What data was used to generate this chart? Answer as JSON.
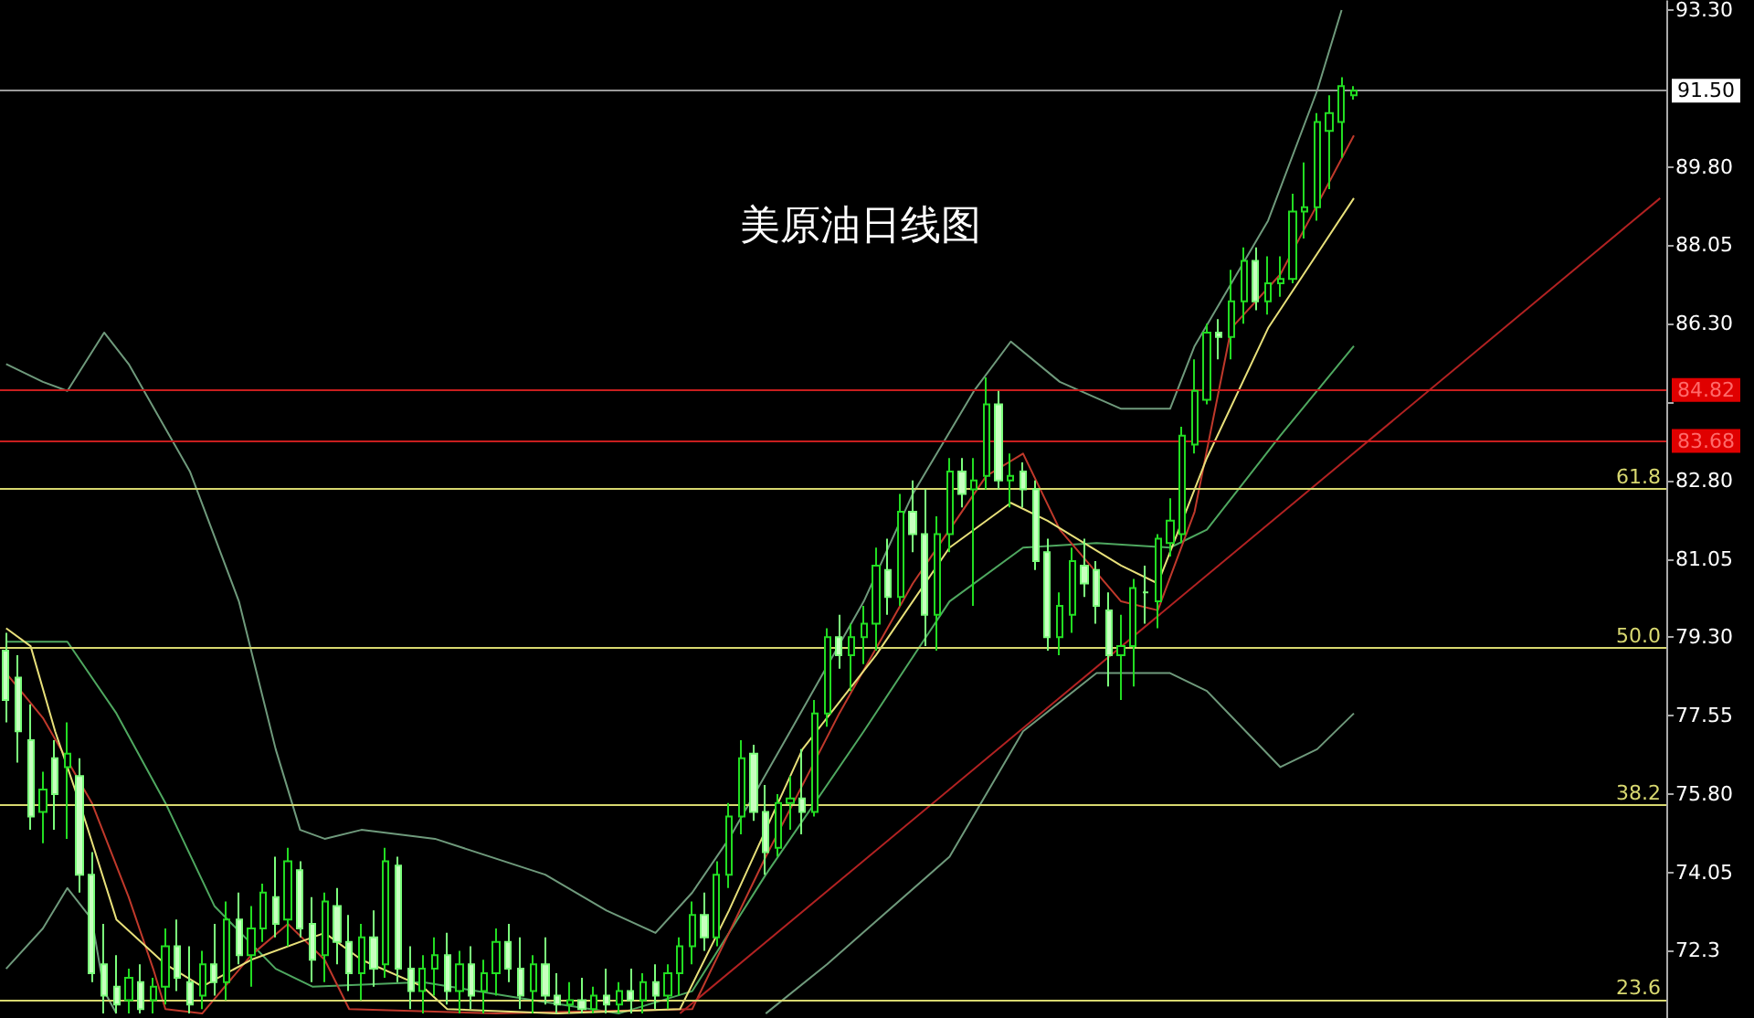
{
  "chart_data": {
    "type": "candlestick",
    "title": "美原油日线图",
    "tick_labels": "y",
    "categories": [
      null,
      null,
      null,
      null,
      null,
      null,
      null,
      null,
      null,
      null,
      null,
      null,
      null,
      null,
      null,
      null,
      null,
      null,
      null,
      null,
      null,
      null,
      null,
      null,
      null,
      null,
      null,
      null,
      null,
      null,
      null,
      null,
      null,
      null,
      null,
      null,
      null,
      null,
      null,
      null,
      null,
      null,
      null,
      null,
      null,
      null,
      null,
      null,
      null,
      null,
      null,
      null,
      null,
      null,
      null,
      null,
      null,
      null,
      null,
      null,
      null,
      null,
      null,
      null,
      null,
      null,
      null,
      null,
      null,
      null,
      null,
      null,
      null,
      null,
      null,
      null,
      null,
      null,
      null,
      null,
      null,
      null,
      null,
      null,
      null,
      null,
      null,
      null,
      null,
      null,
      null,
      null,
      null,
      null,
      null,
      null,
      null,
      null,
      null,
      null,
      null,
      null,
      null,
      null,
      null,
      null,
      null,
      null,
      null,
      null,
      null,
      null,
      null,
      null,
      null,
      null,
      null,
      null,
      null,
      null,
      null,
      null,
      null,
      null,
      null,
      null,
      null,
      null,
      null,
      null,
      null,
      null,
      null,
      null,
      null,
      null
    ],
    "ohlc": [
      [
        79.0,
        79.4,
        77.4,
        77.9
      ],
      [
        78.4,
        78.9,
        76.5,
        77.2
      ],
      [
        77.0,
        77.8,
        75.0,
        75.3
      ],
      [
        75.4,
        76.3,
        74.7,
        75.9
      ],
      [
        76.6,
        77.0,
        75.0,
        75.8
      ],
      [
        76.4,
        77.4,
        74.8,
        76.7
      ],
      [
        76.2,
        76.6,
        73.6,
        74.0
      ],
      [
        74.0,
        74.5,
        71.6,
        71.8
      ],
      [
        72.0,
        72.9,
        70.9,
        71.3
      ],
      [
        71.5,
        72.2,
        70.9,
        71.1
      ],
      [
        71.2,
        71.9,
        70.9,
        71.7
      ],
      [
        71.6,
        72.0,
        70.9,
        71.0
      ],
      [
        71.2,
        71.7,
        70.9,
        71.5
      ],
      [
        71.5,
        72.8,
        71.1,
        72.4
      ],
      [
        72.4,
        73.0,
        71.4,
        71.7
      ],
      [
        71.6,
        72.4,
        70.9,
        71.1
      ],
      [
        71.3,
        72.3,
        71.0,
        72.0
      ],
      [
        72.0,
        72.9,
        71.3,
        71.6
      ],
      [
        71.6,
        73.4,
        71.2,
        73.0
      ],
      [
        73.0,
        73.6,
        72.0,
        72.2
      ],
      [
        72.2,
        73.3,
        71.5,
        72.8
      ],
      [
        72.8,
        73.8,
        72.5,
        73.6
      ],
      [
        73.5,
        74.4,
        72.6,
        72.9
      ],
      [
        73.0,
        74.6,
        72.4,
        74.3
      ],
      [
        74.1,
        74.3,
        72.6,
        72.8
      ],
      [
        72.9,
        73.5,
        71.6,
        72.1
      ],
      [
        72.2,
        73.6,
        71.6,
        73.4
      ],
      [
        73.3,
        73.7,
        72.0,
        72.5
      ],
      [
        72.5,
        73.1,
        71.4,
        71.8
      ],
      [
        71.8,
        72.9,
        71.2,
        72.6
      ],
      [
        72.6,
        73.2,
        71.5,
        71.9
      ],
      [
        72.0,
        74.6,
        71.7,
        74.3
      ],
      [
        74.2,
        74.4,
        71.6,
        71.9
      ],
      [
        71.9,
        72.4,
        71.0,
        71.4
      ],
      [
        71.4,
        72.2,
        70.9,
        71.9
      ],
      [
        71.9,
        72.6,
        71.3,
        72.2
      ],
      [
        72.2,
        72.7,
        71.1,
        71.4
      ],
      [
        71.4,
        72.3,
        70.9,
        72.0
      ],
      [
        72.0,
        72.4,
        71.0,
        71.3
      ],
      [
        71.4,
        72.1,
        70.9,
        71.8
      ],
      [
        71.8,
        72.8,
        71.3,
        72.5
      ],
      [
        72.5,
        72.9,
        71.6,
        71.9
      ],
      [
        71.9,
        72.6,
        71.0,
        71.3
      ],
      [
        71.4,
        72.2,
        70.9,
        72.0
      ],
      [
        72.0,
        72.6,
        71.1,
        71.3
      ],
      [
        71.3,
        71.8,
        70.9,
        71.1
      ],
      [
        71.1,
        71.6,
        70.9,
        71.2
      ],
      [
        71.2,
        71.7,
        70.9,
        71.0
      ],
      [
        71.0,
        71.5,
        70.9,
        71.3
      ],
      [
        71.3,
        71.9,
        70.9,
        71.1
      ],
      [
        71.1,
        71.6,
        70.9,
        71.4
      ],
      [
        71.4,
        71.9,
        70.9,
        71.2
      ],
      [
        71.2,
        71.8,
        70.9,
        71.6
      ],
      [
        71.6,
        72.0,
        71.0,
        71.3
      ],
      [
        71.3,
        72.0,
        71.0,
        71.8
      ],
      [
        71.8,
        72.6,
        71.3,
        72.4
      ],
      [
        72.4,
        73.4,
        72.0,
        73.1
      ],
      [
        73.1,
        73.6,
        72.3,
        72.6
      ],
      [
        72.6,
        74.3,
        72.4,
        74.0
      ],
      [
        74.0,
        75.6,
        73.7,
        75.3
      ],
      [
        75.3,
        77.0,
        74.9,
        76.6
      ],
      [
        76.7,
        76.9,
        75.2,
        75.4
      ],
      [
        75.4,
        76.0,
        74.0,
        74.5
      ],
      [
        74.6,
        75.8,
        74.4,
        75.6
      ],
      [
        75.6,
        76.2,
        75.0,
        75.7
      ],
      [
        75.7,
        76.8,
        74.9,
        75.4
      ],
      [
        75.4,
        77.9,
        75.3,
        77.6
      ],
      [
        77.6,
        79.5,
        77.3,
        79.3
      ],
      [
        79.3,
        79.8,
        78.6,
        78.9
      ],
      [
        78.9,
        79.6,
        78.1,
        79.3
      ],
      [
        79.3,
        80.0,
        78.7,
        79.6
      ],
      [
        79.6,
        81.3,
        79.0,
        80.9
      ],
      [
        80.8,
        81.5,
        79.8,
        80.2
      ],
      [
        80.2,
        82.5,
        80.0,
        82.1
      ],
      [
        82.1,
        82.8,
        81.2,
        81.6
      ],
      [
        81.6,
        82.6,
        79.1,
        79.8
      ],
      [
        79.8,
        82.0,
        79.0,
        81.6
      ],
      [
        81.6,
        83.3,
        81.2,
        83.0
      ],
      [
        83.0,
        83.3,
        82.2,
        82.5
      ],
      [
        82.6,
        83.3,
        80.0,
        82.8
      ],
      [
        82.9,
        85.1,
        82.6,
        84.5
      ],
      [
        84.5,
        84.8,
        82.6,
        82.8
      ],
      [
        82.8,
        83.4,
        82.2,
        82.9
      ],
      [
        83.0,
        83.2,
        82.2,
        82.6
      ],
      [
        82.6,
        82.8,
        80.8,
        81.0
      ],
      [
        81.2,
        81.5,
        79.0,
        79.3
      ],
      [
        79.3,
        80.3,
        78.9,
        80.0
      ],
      [
        79.8,
        81.3,
        79.4,
        81.0
      ],
      [
        80.9,
        81.5,
        80.2,
        80.5
      ],
      [
        80.8,
        81.0,
        79.6,
        80.0
      ],
      [
        79.9,
        80.3,
        78.2,
        78.9
      ],
      [
        78.9,
        79.8,
        77.9,
        79.1
      ],
      [
        79.1,
        80.6,
        78.2,
        80.4
      ],
      [
        80.3,
        80.9,
        79.6,
        80.3
      ],
      [
        80.1,
        81.6,
        79.5,
        81.5
      ],
      [
        81.4,
        82.4,
        81.1,
        81.9
      ],
      [
        81.6,
        84.0,
        81.4,
        83.8
      ],
      [
        83.6,
        85.5,
        83.4,
        84.8
      ],
      [
        84.6,
        86.3,
        84.5,
        86.1
      ],
      [
        86.1,
        86.4,
        85.5,
        86.0
      ],
      [
        86.0,
        87.5,
        85.5,
        86.8
      ],
      [
        86.8,
        88.0,
        86.3,
        87.7
      ],
      [
        87.7,
        88.0,
        86.6,
        86.8
      ],
      [
        86.8,
        87.8,
        86.5,
        87.2
      ],
      [
        87.2,
        87.8,
        86.9,
        87.3
      ],
      [
        87.3,
        89.2,
        87.2,
        88.8
      ],
      [
        88.8,
        89.9,
        88.2,
        88.9
      ],
      [
        88.9,
        91.0,
        88.6,
        90.8
      ],
      [
        90.6,
        91.4,
        89.3,
        91.0
      ],
      [
        90.8,
        91.8,
        90.0,
        91.6
      ],
      [
        91.4,
        91.6,
        91.3,
        91.5
      ],
      null,
      null,
      null,
      null,
      null,
      null,
      null,
      null,
      null,
      null,
      null,
      null,
      null,
      null,
      null,
      null,
      null,
      null,
      null,
      null,
      null,
      null,
      null,
      null,
      null
    ],
    "ylim": [
      70.8,
      93.5
    ],
    "yticks": [
      72.3,
      {
        "value": 74.05,
        "label": "74.05"
      },
      {
        "value": 75.8,
        "label": "75.80"
      },
      {
        "value": 77.55,
        "label": "77.55"
      },
      {
        "value": 79.3,
        "label": "79.30"
      },
      {
        "value": 81.05,
        "label": "81.05"
      },
      {
        "value": 82.8,
        "label": "82.80"
      },
      {
        "value": 84.55,
        "label": null
      },
      {
        "value": 86.3,
        "label": "86.30"
      },
      {
        "value": 88.05,
        "label": "88.05"
      },
      {
        "value": 89.8,
        "label": "89.80"
      },
      {
        "value": 93.3,
        "label": "93.30"
      }
    ],
    "series": [
      {
        "type": "line",
        "color": "#6f9a7c",
        "values": [
          85.4,
          null,
          null,
          85.0,
          null,
          84.8,
          null,
          null,
          86.1,
          null,
          85.4,
          null,
          null,
          null,
          null,
          83.0,
          null,
          null,
          null,
          80.1,
          null,
          null,
          76.8,
          null,
          75.0,
          null,
          74.8,
          null,
          null,
          75.0,
          null,
          null,
          null,
          null,
          null,
          74.8,
          null,
          null,
          null,
          null,
          null,
          null,
          null,
          null,
          74.0,
          null,
          null,
          null,
          null,
          73.2,
          null,
          null,
          null,
          72.7,
          null,
          null,
          73.6,
          null,
          null,
          74.8,
          null,
          null,
          null,
          null,
          77.2,
          null,
          null,
          null,
          null,
          null,
          80.1,
          null,
          null,
          null,
          82.5,
          null,
          null,
          null,
          null,
          84.8,
          null,
          null,
          85.9,
          null,
          null,
          null,
          85.0,
          null,
          null,
          null,
          null,
          84.4,
          null,
          null,
          null,
          84.4,
          null,
          85.8,
          null,
          null,
          null,
          null,
          null,
          88.6,
          null,
          null,
          null,
          91.5,
          null,
          93.3,
          null,
          null,
          null,
          null,
          null,
          null,
          null,
          null,
          null,
          null,
          null,
          null,
          null,
          null,
          null,
          null,
          null,
          null,
          null,
          null,
          null,
          null,
          null,
          null,
          null,
          null
        ]
      },
      {
        "type": "line",
        "color": "#6f9a7c",
        "values": [
          71.9,
          null,
          null,
          72.8,
          null,
          73.7,
          null,
          73.0,
          71.4,
          70.9,
          null,
          null,
          null,
          null,
          null,
          null,
          null,
          null,
          null,
          null,
          null,
          null,
          null,
          null,
          null,
          null,
          null,
          null,
          null,
          null,
          null,
          null,
          null,
          null,
          null,
          null,
          null,
          null,
          null,
          null,
          null,
          null,
          null,
          null,
          null,
          null,
          null,
          null,
          null,
          null,
          null,
          null,
          null,
          null,
          null,
          null,
          null,
          null,
          null,
          null,
          null,
          null,
          null,
          null,
          null,
          null,
          null,
          null,
          null,
          null,
          null,
          null,
          null,
          null,
          null,
          null,
          null,
          null,
          null,
          null,
          null,
          null,
          null,
          null,
          null,
          null,
          null,
          null,
          null,
          null,
          null,
          null,
          null,
          null,
          null,
          null,
          null,
          null,
          null,
          null,
          null,
          null,
          null,
          null,
          null,
          null,
          null,
          null,
          null,
          null,
          null,
          null,
          null,
          null,
          null,
          null,
          null,
          null,
          null,
          null,
          null,
          null,
          null,
          null,
          null,
          null,
          null,
          null,
          null,
          null,
          null,
          null,
          null,
          null,
          null,
          null
        ]
      },
      {
        "type": "line",
        "color": "#6f9a7c",
        "values": [
          null,
          null,
          null,
          null,
          null,
          null,
          null,
          null,
          null,
          null,
          null,
          null,
          null,
          null,
          null,
          null,
          null,
          null,
          null,
          null,
          null,
          null,
          null,
          null,
          null,
          null,
          null,
          null,
          null,
          null,
          null,
          null,
          null,
          null,
          null,
          null,
          null,
          null,
          null,
          null,
          null,
          null,
          null,
          null,
          null,
          null,
          null,
          null,
          null,
          null,
          null,
          null,
          null,
          null,
          null,
          null,
          null,
          null,
          null,
          null,
          null,
          null,
          70.9,
          null,
          null,
          null,
          null,
          72.0,
          null,
          null,
          null,
          null,
          null,
          null,
          null,
          null,
          null,
          74.4,
          null,
          null,
          null,
          null,
          null,
          77.2,
          null,
          null,
          null,
          null,
          null,
          78.5,
          null,
          null,
          null,
          null,
          null,
          78.5,
          null,
          null,
          78.1,
          null,
          null,
          null,
          null,
          null,
          76.4,
          null,
          null,
          76.8,
          null,
          null,
          77.6,
          null,
          null,
          null,
          null,
          null,
          null,
          null,
          null,
          null,
          null,
          null,
          null,
          null,
          null,
          null,
          null,
          null,
          null,
          null,
          null,
          null,
          null,
          null,
          null,
          null
        ]
      },
      {
        "type": "line",
        "color": "#4fa860",
        "values": [
          79.2,
          null,
          null,
          null,
          null,
          79.2,
          null,
          null,
          null,
          77.6,
          null,
          null,
          null,
          75.6,
          null,
          null,
          null,
          73.3,
          null,
          null,
          null,
          null,
          71.9,
          null,
          null,
          71.5,
          null,
          null,
          null,
          null,
          null,
          null,
          null,
          null,
          71.6,
          null,
          null,
          null,
          null,
          null,
          null,
          null,
          null,
          71.2,
          null,
          null,
          null,
          null,
          null,
          null,
          70.9,
          null,
          null,
          null,
          null,
          null,
          71.4,
          null,
          null,
          null,
          null,
          null,
          74.0,
          null,
          null,
          null,
          null,
          null,
          null,
          null,
          77.2,
          null,
          null,
          null,
          null,
          null,
          null,
          80.1,
          null,
          null,
          null,
          null,
          null,
          81.3,
          null,
          null,
          null,
          null,
          null,
          81.4,
          null,
          null,
          null,
          null,
          null,
          81.3,
          null,
          null,
          81.7,
          null,
          null,
          null,
          null,
          null,
          83.8,
          null,
          null,
          null,
          null,
          null,
          85.8,
          null,
          null,
          null,
          null,
          null,
          null,
          null,
          null,
          null,
          null,
          null,
          null,
          null,
          null,
          null,
          null,
          null,
          null,
          null,
          null,
          null,
          null,
          null,
          null,
          null
        ]
      },
      {
        "type": "line",
        "color": "#c0392b",
        "values": [
          78.5,
          null,
          null,
          77.5,
          null,
          null,
          null,
          75.6,
          null,
          null,
          73.5,
          null,
          71.9,
          71.0,
          null,
          null,
          70.9,
          null,
          null,
          null,
          72.2,
          null,
          null,
          72.9,
          null,
          null,
          72.1,
          null,
          71.0,
          null,
          null,
          null,
          null,
          null,
          null,
          null,
          null,
          null,
          null,
          null,
          70.9,
          null,
          null,
          null,
          null,
          null,
          null,
          null,
          null,
          null,
          null,
          null,
          null,
          null,
          null,
          null,
          71.0,
          null,
          null,
          null,
          null,
          null,
          74.4,
          null,
          null,
          null,
          null,
          null,
          77.6,
          null,
          null,
          null,
          null,
          null,
          80.5,
          null,
          null,
          null,
          null,
          null,
          82.9,
          null,
          null,
          83.4,
          null,
          null,
          81.7,
          null,
          null,
          null,
          null,
          80.1,
          null,
          null,
          79.9,
          null,
          null,
          82.1,
          null,
          null,
          86.2,
          null,
          null,
          null,
          87.4,
          null,
          null,
          null,
          null,
          null,
          90.5,
          null,
          null,
          null,
          null,
          null,
          null,
          null,
          null,
          null,
          null,
          null,
          null,
          null,
          null,
          null,
          null,
          null,
          null,
          null,
          null,
          null,
          null,
          null,
          null,
          null
        ]
      },
      {
        "type": "line",
        "color": "#e8e07a",
        "values": [
          79.5,
          null,
          79.1,
          null,
          77.2,
          null,
          75.6,
          null,
          null,
          73.0,
          null,
          null,
          null,
          72.0,
          null,
          null,
          71.5,
          null,
          null,
          null,
          72.1,
          null,
          null,
          null,
          null,
          null,
          72.7,
          null,
          null,
          72.1,
          null,
          null,
          null,
          null,
          71.5,
          null,
          71.0,
          null,
          null,
          null,
          null,
          null,
          null,
          null,
          null,
          70.9,
          null,
          null,
          null,
          null,
          null,
          null,
          null,
          null,
          null,
          71.0,
          null,
          null,
          null,
          73.2,
          null,
          null,
          null,
          null,
          null,
          76.8,
          null,
          null,
          null,
          null,
          null,
          78.9,
          null,
          null,
          null,
          null,
          null,
          81.3,
          null,
          null,
          null,
          null,
          82.3,
          null,
          null,
          81.9,
          null,
          null,
          null,
          null,
          null,
          80.9,
          null,
          null,
          80.5,
          null,
          null,
          null,
          83.3,
          null,
          null,
          null,
          null,
          86.2,
          null,
          null,
          null,
          null,
          null,
          null,
          89.1,
          null,
          null,
          null,
          null,
          null,
          null,
          null,
          null,
          null,
          null,
          null,
          null,
          null,
          null,
          null,
          null,
          null,
          null,
          null,
          null,
          null,
          null,
          null,
          null,
          null
        ]
      },
      {
        "type": "line",
        "color": "#b22222",
        "values": [
          null,
          null,
          null,
          null,
          null,
          null,
          null,
          null,
          null,
          null,
          null,
          null,
          null,
          null,
          null,
          null,
          null,
          null,
          null,
          null,
          null,
          null,
          null,
          null,
          null,
          null,
          null,
          null,
          null,
          null,
          null,
          null,
          null,
          null,
          null,
          null,
          null,
          null,
          null,
          null,
          null,
          null,
          null,
          null,
          null,
          null,
          null,
          null,
          null,
          null,
          null,
          null,
          null,
          null,
          null,
          70.9,
          null,
          null,
          null,
          null,
          null,
          null,
          null,
          null,
          null,
          null,
          null,
          null,
          null,
          null,
          null,
          null,
          null,
          null,
          null,
          null,
          null,
          null,
          null,
          null,
          null,
          null,
          null,
          null,
          null,
          null,
          null,
          null,
          null,
          null,
          null,
          null,
          null,
          null,
          null,
          null,
          null,
          null,
          null,
          null,
          null,
          null,
          null,
          null,
          null,
          null,
          null,
          null,
          null,
          null,
          null,
          null,
          null,
          null,
          null,
          null,
          null,
          null,
          null,
          null,
          null,
          null,
          null,
          null,
          null,
          null,
          null,
          null,
          null,
          null,
          null,
          null,
          null,
          null,
          null,
          89.1
        ]
      }
    ],
    "ref_lines": [
      {
        "axis": "y",
        "value": 91.5,
        "label": "91.50",
        "color": "#9a9a9a"
      },
      {
        "axis": "y",
        "value": 84.82,
        "label": "84.82",
        "color": "#c81e1e"
      },
      {
        "axis": "y",
        "value": 83.68,
        "label": "83.68",
        "color": "#c81e1e"
      },
      {
        "axis": "y",
        "value": 82.61,
        "color": "#d8d870"
      },
      {
        "axis": "y",
        "value": 79.07,
        "color": "#d8d870"
      },
      {
        "axis": "y",
        "value": 75.56,
        "color": "#d8d870"
      },
      {
        "axis": "y",
        "value": 71.2,
        "color": "#d8d870"
      }
    ],
    "annotations": [
      {
        "text": "61.8",
        "y": 82.61
      },
      {
        "text": "50.0",
        "y": 79.07
      },
      {
        "text": "38.2",
        "y": 75.56
      },
      {
        "text": "23.6",
        "y": 71.2
      }
    ]
  }
}
